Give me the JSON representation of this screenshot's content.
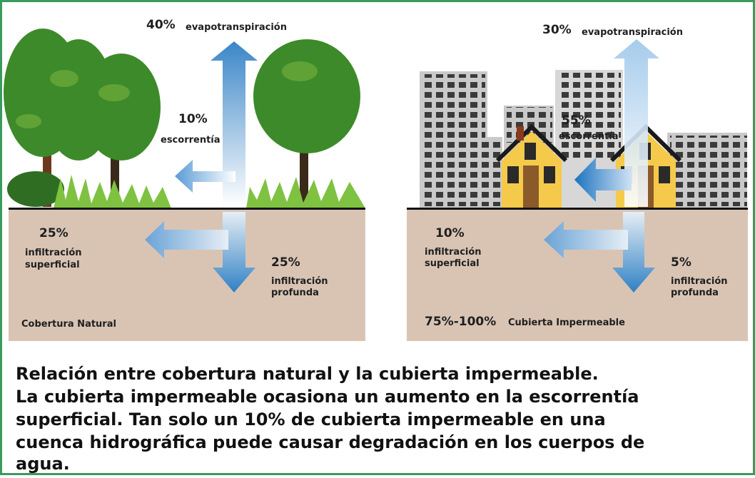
{
  "panels": [
    {
      "evapotranspiration": {
        "percent": "40%",
        "label": "evapotranspiración"
      },
      "runoff": {
        "percent": "10%",
        "label": "escorrentía"
      },
      "shallow_infiltration": {
        "percent": "25%",
        "label_lines": [
          "infiltración",
          "superficial"
        ]
      },
      "deep_infiltration": {
        "percent": "25%",
        "label_lines": [
          "infiltración",
          "profunda"
        ]
      },
      "cover": {
        "label": "Cobertura Natural"
      }
    },
    {
      "evapotranspiration": {
        "percent": "30%",
        "label": "evapotranspiración"
      },
      "runoff": {
        "percent": "55%",
        "label": "escorrentía"
      },
      "shallow_infiltration": {
        "percent": "10%",
        "label_lines": [
          "infiltración",
          "superficial"
        ]
      },
      "deep_infiltration": {
        "percent": "5%",
        "label_lines": [
          "infiltración",
          "profunda"
        ]
      },
      "cover": {
        "percent": "75%-100%",
        "label": "Cubierta Impermeable"
      }
    }
  ],
  "caption": {
    "lines": [
      "Relación entre cobertura natural y la cubierta impermeable.",
      "La cubierta impermeable ocasiona un aumento en la escorrentía",
      "superficial. Tan solo un 10% de cubierta impermeable en una",
      "cuenca hidrográfica puede causar degradación en los cuerpos de",
      "agua."
    ]
  }
}
